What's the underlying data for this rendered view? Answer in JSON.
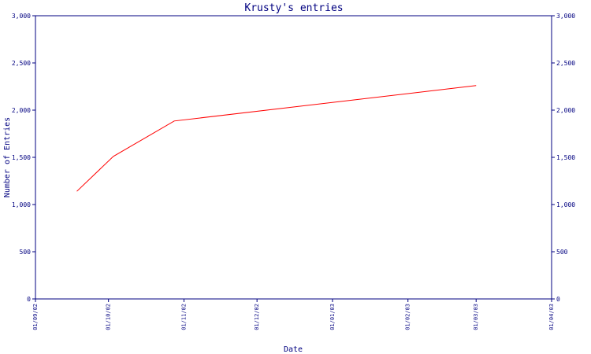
{
  "chart_data": {
    "type": "line",
    "title": "Krusty's entries",
    "xlabel": "Date",
    "ylabel": "Number of Entries",
    "ylim": [
      0,
      3000
    ],
    "y_ticks": [
      0,
      500,
      1000,
      1500,
      2000,
      2500,
      3000
    ],
    "y_tick_labels": [
      "0",
      "500",
      "1,000",
      "1,500",
      "2,000",
      "2,500",
      "3,000"
    ],
    "x_ticks": [
      "01/09/02",
      "01/10/02",
      "01/11/02",
      "01/12/02",
      "01/01/03",
      "01/02/03",
      "01/03/03",
      "01/04/03"
    ],
    "x_range": [
      "2002-09-01",
      "2003-04-01"
    ],
    "grid": false,
    "series": [
      {
        "color": "#ff0000",
        "points": [
          {
            "x": "2002-09-18",
            "y": 1140
          },
          {
            "x": "2002-10-03",
            "y": 1510
          },
          {
            "x": "2002-10-28",
            "y": 1885
          },
          {
            "x": "2003-03-01",
            "y": 2260
          }
        ]
      }
    ]
  }
}
